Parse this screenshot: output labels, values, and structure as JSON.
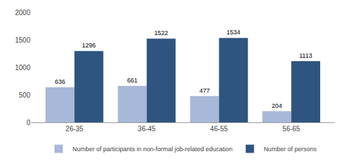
{
  "chart_data": {
    "type": "bar",
    "categories": [
      "26-35",
      "36-45",
      "46-55",
      "56-65"
    ],
    "series": [
      {
        "name": "Number of participants in non-formal job-related education",
        "color": "#a8b8d8",
        "values": [
          636,
          661,
          477,
          204
        ]
      },
      {
        "name": "Number of persons",
        "color": "#2e5580",
        "values": [
          1296,
          1522,
          1534,
          1113
        ]
      }
    ],
    "ylim": [
      0,
      2000
    ],
    "yticks": [
      0,
      500,
      1000,
      1500,
      2000
    ],
    "grid": false,
    "legend": "bottom",
    "data_labels": true
  }
}
